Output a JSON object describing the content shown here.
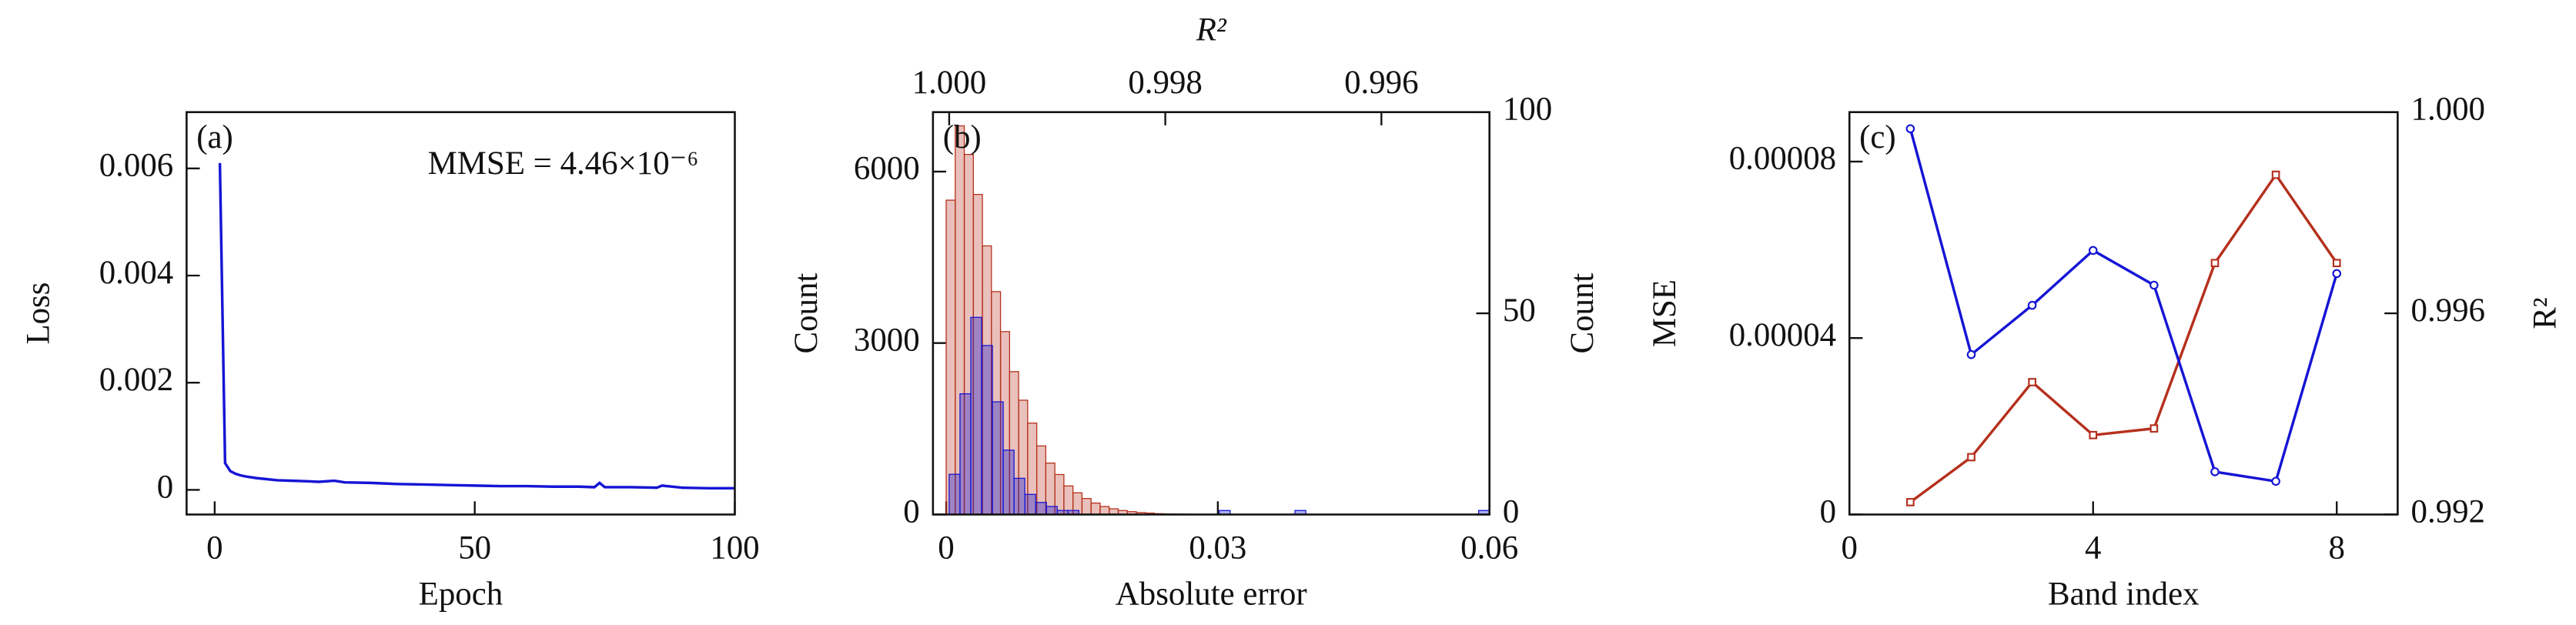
{
  "chart_data": [
    {
      "type": "line",
      "annotations": [
        "(a)",
        "MMSE = 4.46×10⁻⁶"
      ],
      "xlabel": "Epoch",
      "ylabel": "Loss",
      "xlim": [
        -5.4,
        100
      ],
      "xticks": [
        0,
        50,
        100
      ],
      "ylim": [
        -0.00046,
        0.00705
      ],
      "yticks": [
        0,
        0.002,
        0.004,
        0.006
      ],
      "series": [
        {
          "color": "#1515d5",
          "x": [
            1,
            2,
            3,
            4,
            5,
            6,
            8,
            10,
            12,
            15,
            18,
            20,
            23,
            25,
            30,
            35,
            40,
            45,
            50,
            55,
            60,
            65,
            70,
            73,
            74,
            75,
            80,
            85,
            86,
            90,
            95,
            100
          ],
          "values": [
            0.0061,
            0.0005,
            0.00035,
            0.0003,
            0.00027,
            0.00025,
            0.00022,
            0.0002,
            0.00018,
            0.00017,
            0.00016,
            0.00015,
            0.00017,
            0.00014,
            0.00013,
            0.00011,
            0.0001,
            9e-05,
            8e-05,
            7e-05,
            7e-05,
            6e-05,
            6e-05,
            5e-05,
            0.00013,
            5e-05,
            5e-05,
            4e-05,
            8e-05,
            4e-05,
            3e-05,
            3e-05
          ]
        }
      ]
    },
    {
      "type": "histogram",
      "annotations": [
        "(b)"
      ],
      "xlabel": "Absolute error",
      "ylabel": "Count",
      "x2label": "R²",
      "y2label": "Count",
      "xlim": [
        -0.00146,
        0.06
      ],
      "xticks": [
        0,
        0.03,
        0.06
      ],
      "x2lim": [
        1.00015,
        0.995
      ],
      "x2ticks": [
        {
          "value": 1,
          "label": "1.000"
        },
        0.998,
        0.996
      ],
      "ylim": [
        0,
        7040
      ],
      "yticks": [
        0,
        3000,
        6000
      ],
      "y2lim": [
        0,
        100
      ],
      "y2ticks": [
        0,
        50,
        100
      ],
      "series": [
        {
          "color": "#b5301d",
          "bins": [
            0,
            0.001,
            0.002,
            0.003,
            0.004,
            0.005,
            0.006,
            0.007,
            0.008,
            0.009,
            0.01,
            0.011,
            0.012,
            0.013,
            0.014,
            0.015,
            0.016,
            0.017,
            0.018,
            0.019,
            0.02,
            0.021,
            0.022,
            0.023,
            0.024,
            0.025,
            0.026,
            0.027,
            0.028,
            0.029,
            0.03
          ],
          "values": [
            5500,
            6800,
            6300,
            5600,
            4700,
            3900,
            3200,
            2500,
            2000,
            1600,
            1200,
            900,
            700,
            500,
            380,
            280,
            200,
            140,
            100,
            70,
            50,
            35,
            25,
            15,
            10,
            8,
            5,
            4,
            3,
            2
          ]
        },
        {
          "color": "#1515d5",
          "axis": "y2",
          "xaxis": "x2",
          "bins": [
            0.995,
            0.9951,
            0.9952,
            0.9953,
            0.9954,
            0.9955,
            0.9956,
            0.9957,
            0.9958,
            0.9959,
            0.996,
            0.9961,
            0.9962,
            0.9963,
            0.9964,
            0.9965,
            0.9966,
            0.9967,
            0.9968,
            0.9969,
            0.997,
            0.9971,
            0.9972,
            0.9973,
            0.9974,
            0.9975,
            0.9976,
            0.9977,
            0.9978,
            0.9979,
            0.998,
            0.9981,
            0.9982,
            0.9983,
            0.9984,
            0.9985,
            0.9986,
            0.9987,
            0.9988,
            0.9989,
            0.999,
            0.9991,
            0.9992,
            0.9993,
            0.9994,
            0.9995,
            0.9996,
            0.9997,
            0.9998,
            0.9999,
            1
          ],
          "values": [
            1,
            0,
            0,
            0,
            0,
            0,
            0,
            0,
            0,
            0,
            0,
            0,
            0,
            0,
            0,
            0,
            0,
            1,
            0,
            0,
            0,
            0,
            0,
            0,
            1,
            0,
            0,
            0,
            0,
            0,
            0,
            0,
            0,
            0,
            0,
            0,
            0,
            0,
            1,
            1,
            2,
            3,
            5,
            9,
            16,
            28,
            42,
            49,
            30,
            10
          ]
        }
      ]
    },
    {
      "type": "line",
      "annotations": [
        "(c)"
      ],
      "xlabel": "Band index",
      "ylabel": "MSE",
      "y2label": "R²",
      "xlim": [
        0,
        9
      ],
      "xticks": [
        0,
        4,
        8
      ],
      "ylim": [
        0,
        9.12e-05
      ],
      "yticks": [
        0,
        4e-05,
        8e-05
      ],
      "y2lim": [
        0.992,
        1
      ],
      "y2ticks": [
        {
          "value": 0.992,
          "label": "0.992"
        },
        0.996,
        {
          "value": 1,
          "label": "1.000"
        }
      ],
      "series": [
        {
          "color": "#b5301d",
          "marker": "square",
          "x": [
            1,
            2,
            3,
            4,
            5,
            6,
            7,
            8
          ],
          "values": [
            2.8e-06,
            1.3e-05,
            3e-05,
            1.8e-05,
            1.95e-05,
            5.7e-05,
            7.7e-05,
            5.7e-05
          ]
        },
        {
          "color": "#1515d5",
          "marker": "circle",
          "axis": "y2",
          "x": [
            1,
            2,
            3,
            4,
            5,
            6,
            7,
            8
          ],
          "values": [
            0.99967,
            0.99518,
            0.99616,
            0.99725,
            0.99656,
            0.99285,
            0.99266,
            0.99679
          ]
        }
      ]
    }
  ]
}
